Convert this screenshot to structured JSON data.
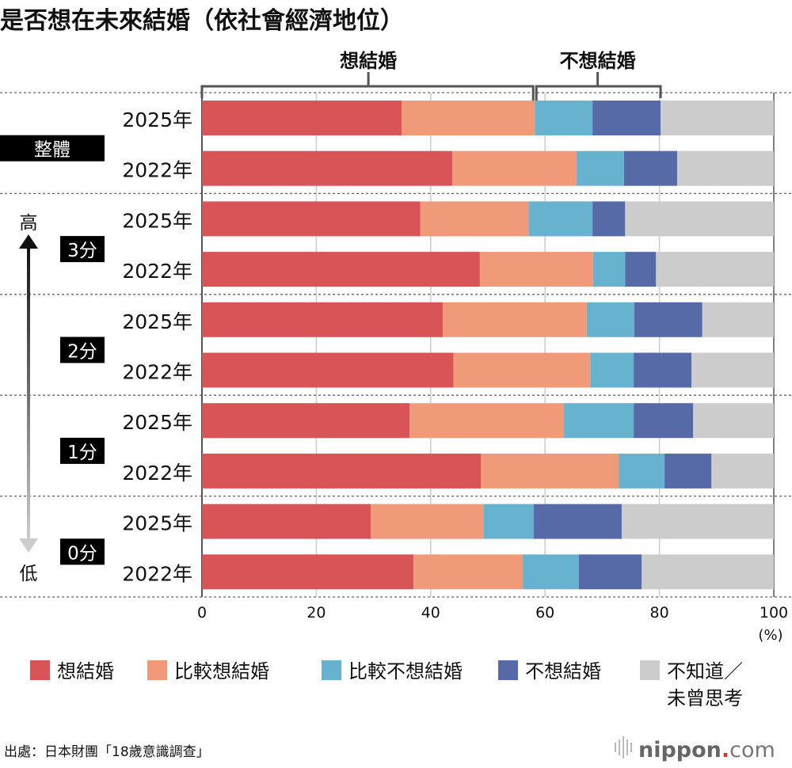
{
  "chart_data": {
    "type": "bar",
    "orientation": "horizontal-stacked",
    "title": "是否想在未來結婚（依社會經濟地位）",
    "bracket_labels": {
      "want": "想結婚",
      "not_want": "不想結婚"
    },
    "groups": [
      {
        "label": "整體",
        "rows": [
          "2025年",
          "2022年"
        ]
      },
      {
        "label": "3分",
        "rows": [
          "2025年",
          "2022年"
        ]
      },
      {
        "label": "2分",
        "rows": [
          "2025年",
          "2022年"
        ]
      },
      {
        "label": "1分",
        "rows": [
          "2025年",
          "2022年"
        ]
      },
      {
        "label": "0分",
        "rows": [
          "2025年",
          "2022年"
        ]
      }
    ],
    "arrow": {
      "top": "高",
      "bottom": "低"
    },
    "series": [
      {
        "name": "想結婚",
        "color": "#d95456",
        "values": [
          34.9,
          43.8,
          38.2,
          48.6,
          42.1,
          44.0,
          36.3,
          48.8,
          29.5,
          37.0
        ]
      },
      {
        "name": "比較想結婚",
        "color": "#f19a7a",
        "values": [
          23.3,
          21.7,
          18.9,
          19.8,
          25.2,
          23.9,
          27.0,
          24.1,
          19.7,
          19.1
        ]
      },
      {
        "name": "比較不想結婚",
        "color": "#67b3cf",
        "values": [
          10.1,
          8.3,
          11.2,
          5.6,
          8.3,
          7.6,
          12.2,
          8.0,
          8.8,
          9.8
        ]
      },
      {
        "name": "不想結婚",
        "color": "#566aa7",
        "values": [
          11.9,
          9.3,
          5.7,
          5.4,
          11.9,
          10.1,
          10.4,
          8.2,
          15.4,
          11.0
        ]
      },
      {
        "name": "不知道／未曾思考",
        "color": "#cccccc",
        "values": [
          19.8,
          16.9,
          26.0,
          20.6,
          12.5,
          14.4,
          14.1,
          10.9,
          26.6,
          23.1
        ]
      }
    ],
    "legend_lines": {
      "last": [
        "不知道／",
        "未曾思考"
      ]
    },
    "xlim": [
      0,
      100
    ],
    "xticks": [
      "0",
      "20",
      "40",
      "60",
      "80",
      "100"
    ],
    "xunit": "(%)",
    "grid": true,
    "legend_position": "bottom"
  },
  "source": "出處：日本財團「18歲意識調查」",
  "logo": "nippon.com"
}
